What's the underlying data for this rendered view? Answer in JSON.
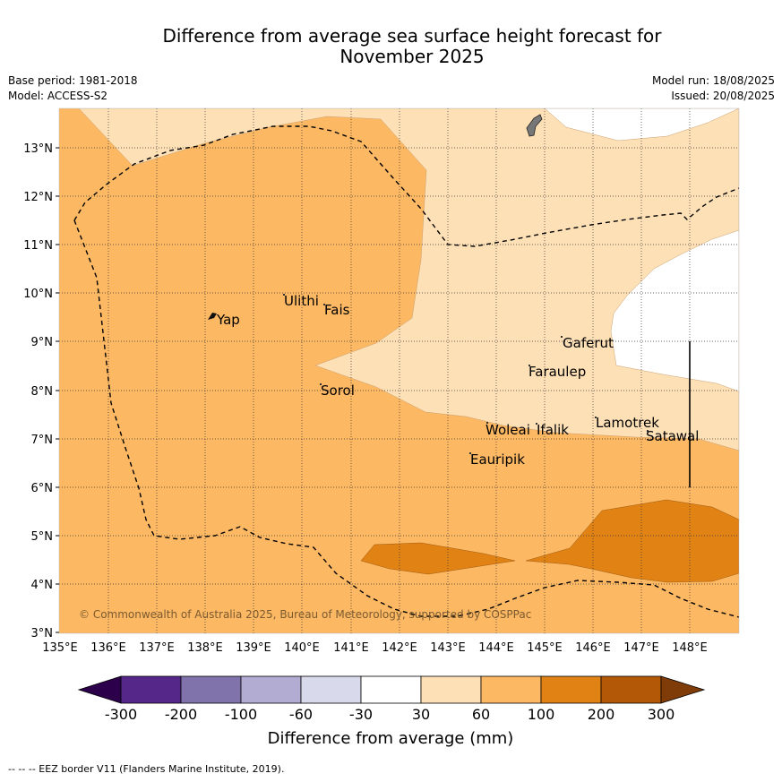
{
  "title_line1": "Difference from average sea surface height forecast for",
  "title_line2": "November 2025",
  "base_period": "Base period: 1981-2018",
  "model": "Model: ACCESS-S2",
  "model_run": "Model run: 18/08/2025",
  "issued": "Issued: 20/08/2025",
  "copyright": "© Commonwealth of Australia 2025, Bureau of Meteorology, supported by COSPPac",
  "lat_labels": [
    "13°N",
    "12°N",
    "11°N",
    "10°N",
    "9°N",
    "8°N",
    "7°N",
    "6°N",
    "5°N",
    "4°N",
    "3°N"
  ],
  "lon_labels": [
    "135°E",
    "136°E",
    "137°E",
    "138°E",
    "139°E",
    "140°E",
    "141°E",
    "142°E",
    "143°E",
    "144°E",
    "145°E",
    "146°E",
    "147°E",
    "148°E"
  ],
  "places": [
    "Yap",
    "Ulithi",
    "Fais",
    "Sorol",
    "Gaferut",
    "Faraulep",
    "Woleai",
    "Ifalik",
    "Lamotrek",
    "Satawal",
    "Eauripik"
  ],
  "colorbar": {
    "label": "Difference from average (mm)",
    "ticks": [
      "-300",
      "-200",
      "-100",
      "-60",
      "-30",
      "30",
      "60",
      "100",
      "200",
      "300"
    ],
    "colors": [
      "#2d004b",
      "#542788",
      "#8073ac",
      "#b2abd2",
      "#d8daeb",
      "#ffffff",
      "#fee0b6",
      "#fdb863",
      "#e08214",
      "#b35806",
      "#7f3b08"
    ]
  },
  "footnote": "--  --  -- EEZ border V11 (Flanders Marine Institute, 2019)."
}
